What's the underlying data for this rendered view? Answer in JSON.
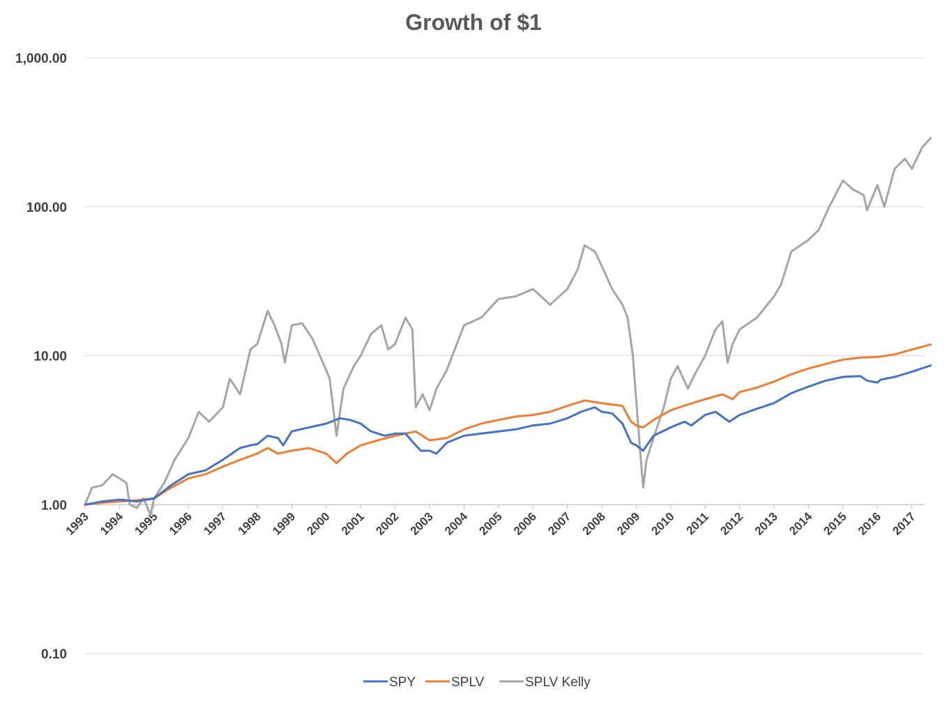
{
  "chart_data": {
    "type": "line",
    "title": "Growth of $1",
    "xlabel": "",
    "ylabel": "",
    "y_scale": "log",
    "ylim": [
      0.1,
      1000
    ],
    "y_ticks": [
      {
        "value": 0.1,
        "label": "0.10"
      },
      {
        "value": 1,
        "label": "1.00"
      },
      {
        "value": 10,
        "label": "10.00"
      },
      {
        "value": 100,
        "label": "100.00"
      },
      {
        "value": 1000,
        "label": "1,000.00"
      }
    ],
    "x_ticks": [
      "1993",
      "1994",
      "1995",
      "1996",
      "1997",
      "1998",
      "1999",
      "2000",
      "2001",
      "2002",
      "2003",
      "2004",
      "2005",
      "2006",
      "2007",
      "2008",
      "2009",
      "2010",
      "2011",
      "2012",
      "2013",
      "2014",
      "2015",
      "2016",
      "2017"
    ],
    "xlim": [
      1993.0,
      2017.55
    ],
    "grid": "horizontal",
    "legend": "bottom",
    "series": [
      {
        "name": "SPY",
        "color": "#4472C4",
        "x": [
          1993.0,
          1993.5,
          1994.0,
          1994.5,
          1995.0,
          1995.5,
          1996.0,
          1996.5,
          1997.0,
          1997.5,
          1997.8,
          1998.0,
          1998.3,
          1998.6,
          1998.75,
          1999.0,
          1999.5,
          2000.0,
          2000.4,
          2000.7,
          2001.0,
          2001.3,
          2001.7,
          2002.0,
          2002.3,
          2002.6,
          2002.75,
          2003.0,
          2003.2,
          2003.5,
          2004.0,
          2004.5,
          2005.0,
          2005.5,
          2006.0,
          2006.5,
          2007.0,
          2007.4,
          2007.8,
          2008.0,
          2008.3,
          2008.6,
          2008.85,
          2009.0,
          2009.2,
          2009.5,
          2010.0,
          2010.4,
          2010.6,
          2011.0,
          2011.3,
          2011.7,
          2012.0,
          2012.5,
          2013.0,
          2013.5,
          2014.0,
          2014.5,
          2015.0,
          2015.5,
          2015.7,
          2016.0,
          2016.1,
          2016.5,
          2017.0,
          2017.55
        ],
        "y": [
          1.0,
          1.05,
          1.08,
          1.05,
          1.1,
          1.35,
          1.6,
          1.7,
          2.0,
          2.4,
          2.5,
          2.55,
          2.9,
          2.8,
          2.5,
          3.1,
          3.3,
          3.5,
          3.8,
          3.7,
          3.5,
          3.1,
          2.9,
          3.0,
          3.0,
          2.5,
          2.3,
          2.3,
          2.2,
          2.6,
          2.9,
          3.0,
          3.1,
          3.2,
          3.4,
          3.5,
          3.8,
          4.2,
          4.5,
          4.2,
          4.1,
          3.5,
          2.6,
          2.5,
          2.3,
          2.9,
          3.3,
          3.6,
          3.4,
          4.0,
          4.2,
          3.6,
          4.0,
          4.4,
          4.8,
          5.6,
          6.2,
          6.8,
          7.2,
          7.3,
          6.8,
          6.6,
          6.9,
          7.2,
          7.8,
          8.6
        ]
      },
      {
        "name": "SPLV",
        "color": "#ED7D31",
        "x": [
          1993.0,
          1993.5,
          1994.0,
          1994.5,
          1995.0,
          1995.5,
          1996.0,
          1996.5,
          1997.0,
          1997.5,
          1998.0,
          1998.3,
          1998.6,
          1999.0,
          1999.5,
          2000.0,
          2000.3,
          2000.6,
          2001.0,
          2001.5,
          2002.0,
          2002.3,
          2002.6,
          2003.0,
          2003.5,
          2004.0,
          2004.5,
          2005.0,
          2005.5,
          2006.0,
          2006.5,
          2007.0,
          2007.5,
          2008.0,
          2008.6,
          2008.85,
          2009.0,
          2009.2,
          2009.5,
          2010.0,
          2010.5,
          2011.0,
          2011.5,
          2011.8,
          2012.0,
          2012.5,
          2013.0,
          2013.5,
          2014.0,
          2014.5,
          2015.0,
          2015.5,
          2016.0,
          2016.5,
          2017.0,
          2017.55
        ],
        "y": [
          1.0,
          1.03,
          1.05,
          1.07,
          1.1,
          1.3,
          1.5,
          1.6,
          1.8,
          2.0,
          2.2,
          2.4,
          2.2,
          2.3,
          2.4,
          2.2,
          1.9,
          2.2,
          2.5,
          2.7,
          2.9,
          3.0,
          3.1,
          2.7,
          2.8,
          3.2,
          3.5,
          3.7,
          3.9,
          4.0,
          4.2,
          4.6,
          5.0,
          4.8,
          4.6,
          3.6,
          3.4,
          3.3,
          3.7,
          4.3,
          4.7,
          5.1,
          5.5,
          5.1,
          5.7,
          6.1,
          6.7,
          7.5,
          8.2,
          8.8,
          9.4,
          9.7,
          9.8,
          10.2,
          11.0,
          11.9
        ]
      },
      {
        "name": "SPLV Kelly",
        "color": "#A5A5A5",
        "x": [
          1993.0,
          1993.2,
          1993.5,
          1993.8,
          1994.0,
          1994.2,
          1994.3,
          1994.5,
          1994.7,
          1994.9,
          1995.0,
          1995.3,
          1995.6,
          1996.0,
          1996.3,
          1996.6,
          1997.0,
          1997.2,
          1997.5,
          1997.8,
          1998.0,
          1998.3,
          1998.5,
          1998.7,
          1998.8,
          1999.0,
          1999.3,
          1999.6,
          2000.0,
          2000.1,
          2000.3,
          2000.5,
          2000.8,
          2001.0,
          2001.3,
          2001.6,
          2001.8,
          2002.0,
          2002.3,
          2002.5,
          2002.6,
          2002.8,
          2003.0,
          2003.2,
          2003.5,
          2004.0,
          2004.5,
          2005.0,
          2005.5,
          2006.0,
          2006.5,
          2007.0,
          2007.3,
          2007.5,
          2007.8,
          2008.0,
          2008.3,
          2008.6,
          2008.75,
          2008.9,
          2009.0,
          2009.1,
          2009.2,
          2009.3,
          2009.5,
          2009.8,
          2010.0,
          2010.2,
          2010.5,
          2010.7,
          2011.0,
          2011.3,
          2011.5,
          2011.65,
          2011.8,
          2012.0,
          2012.5,
          2013.0,
          2013.2,
          2013.5,
          2014.0,
          2014.3,
          2014.6,
          2015.0,
          2015.3,
          2015.6,
          2015.7,
          2016.0,
          2016.2,
          2016.5,
          2016.8,
          2017.0,
          2017.3,
          2017.55
        ],
        "y": [
          1.0,
          1.3,
          1.35,
          1.6,
          1.5,
          1.4,
          1.0,
          0.95,
          1.1,
          0.85,
          1.1,
          1.4,
          2.0,
          2.8,
          4.2,
          3.6,
          4.5,
          7.0,
          5.5,
          11.0,
          12.0,
          20.0,
          16.0,
          12.0,
          9.0,
          16.0,
          16.5,
          13.0,
          8.0,
          7.0,
          2.9,
          6.0,
          8.5,
          10.0,
          14.0,
          16.0,
          11.0,
          12.0,
          18.0,
          15.0,
          4.5,
          5.5,
          4.3,
          6.0,
          8.0,
          16.0,
          18.0,
          24.0,
          25.0,
          28.0,
          22.0,
          28.0,
          38.0,
          55.0,
          50.0,
          40.0,
          28.0,
          22.0,
          18.0,
          10.0,
          5.0,
          2.5,
          1.3,
          2.0,
          2.8,
          4.5,
          7.0,
          8.5,
          6.0,
          7.5,
          10.0,
          15.0,
          17.0,
          9.0,
          12.0,
          15.0,
          18.0,
          25.0,
          30.0,
          50.0,
          60.0,
          70.0,
          100.0,
          150.0,
          130.0,
          120.0,
          95.0,
          140.0,
          100.0,
          180.0,
          210.0,
          180.0,
          250.0,
          290.0
        ]
      }
    ]
  }
}
